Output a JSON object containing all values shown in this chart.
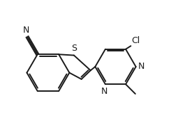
{
  "bg_color": "#ffffff",
  "line_color": "#1a1a1a",
  "text_color": "#1a1a1a",
  "line_width": 1.4,
  "font_size": 9,
  "figsize": [
    2.65,
    2.0
  ],
  "dpi": 100,
  "xlim": [
    0,
    10
  ],
  "ylim": [
    0,
    7.55
  ]
}
